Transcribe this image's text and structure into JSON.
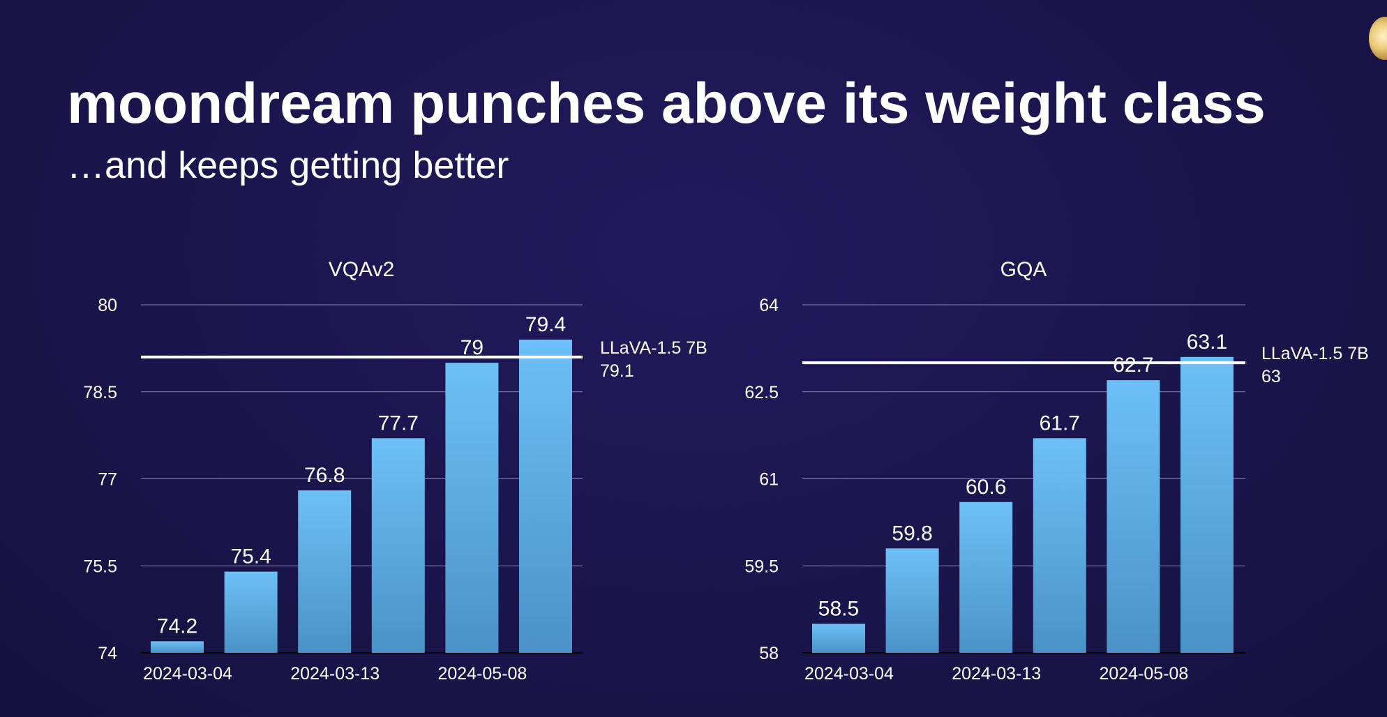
{
  "slide": {
    "title": "moondream punches above its weight class",
    "subtitle": "…and keeps getting better"
  },
  "colors": {
    "bar_top": "#6cc0f7",
    "bar_bottom": "#4a92c7",
    "grid": "#8a87b0",
    "text": "#ffffff"
  },
  "chart_data": [
    {
      "type": "bar",
      "title": "VQAv2",
      "categories": [
        "2024-03-04",
        "",
        "2024-03-13",
        "",
        "2024-05-08",
        ""
      ],
      "values": [
        74.2,
        75.4,
        76.8,
        77.7,
        79,
        79.4
      ],
      "value_labels": [
        "74.2",
        "75.4",
        "76.8",
        "77.7",
        "79",
        "79.4"
      ],
      "ylim": [
        74,
        80
      ],
      "yticks": [
        74,
        75.5,
        77,
        78.5,
        80
      ],
      "ytick_labels": [
        "74",
        "75.5",
        "77",
        "78.5",
        "80"
      ],
      "reference": {
        "name": "LLaVA-1.5 7B",
        "value": 79.1,
        "value_label": "79.1"
      },
      "grid": true
    },
    {
      "type": "bar",
      "title": "GQA",
      "categories": [
        "2024-03-04",
        "",
        "2024-03-13",
        "",
        "2024-05-08",
        ""
      ],
      "values": [
        58.5,
        59.8,
        60.6,
        61.7,
        62.7,
        63.1
      ],
      "value_labels": [
        "58.5",
        "59.8",
        "60.6",
        "61.7",
        "62.7",
        "63.1"
      ],
      "ylim": [
        58,
        64
      ],
      "yticks": [
        58,
        59.5,
        61,
        62.5,
        64
      ],
      "ytick_labels": [
        "58",
        "59.5",
        "61",
        "62.5",
        "64"
      ],
      "reference": {
        "name": "LLaVA-1.5 7B",
        "value": 63,
        "value_label": "63"
      },
      "grid": true
    }
  ]
}
